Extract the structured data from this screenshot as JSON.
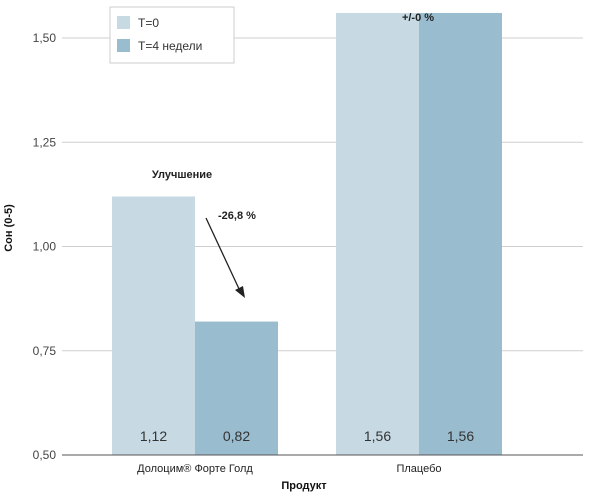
{
  "chart_data": {
    "type": "bar",
    "categories": [
      "Долоцим® Форте Голд",
      "Плацебо"
    ],
    "series": [
      {
        "name": "T=0",
        "color": "#c7dae4",
        "values": [
          1.12,
          1.56
        ],
        "labels": [
          "1,12",
          "1,56"
        ]
      },
      {
        "name": "T=4 недели",
        "color": "#99bccf",
        "values": [
          0.82,
          1.56
        ],
        "labels": [
          "0,82",
          "1,56"
        ]
      }
    ],
    "xlabel": "Продукт",
    "ylabel": "Сон (0-5)",
    "ylim": [
      0.5,
      1.5
    ],
    "yticks": [
      0.5,
      0.75,
      1.0,
      1.25,
      1.5
    ],
    "ytick_labels": [
      "0,50",
      "0,75",
      "1,00",
      "1,25",
      "1,50"
    ],
    "grid": true,
    "legend_position": "top-left",
    "annotations": {
      "improvement_label": "Улучшение",
      "change_label": "-26,8 %",
      "placebo_label": "+/-0 %"
    }
  }
}
